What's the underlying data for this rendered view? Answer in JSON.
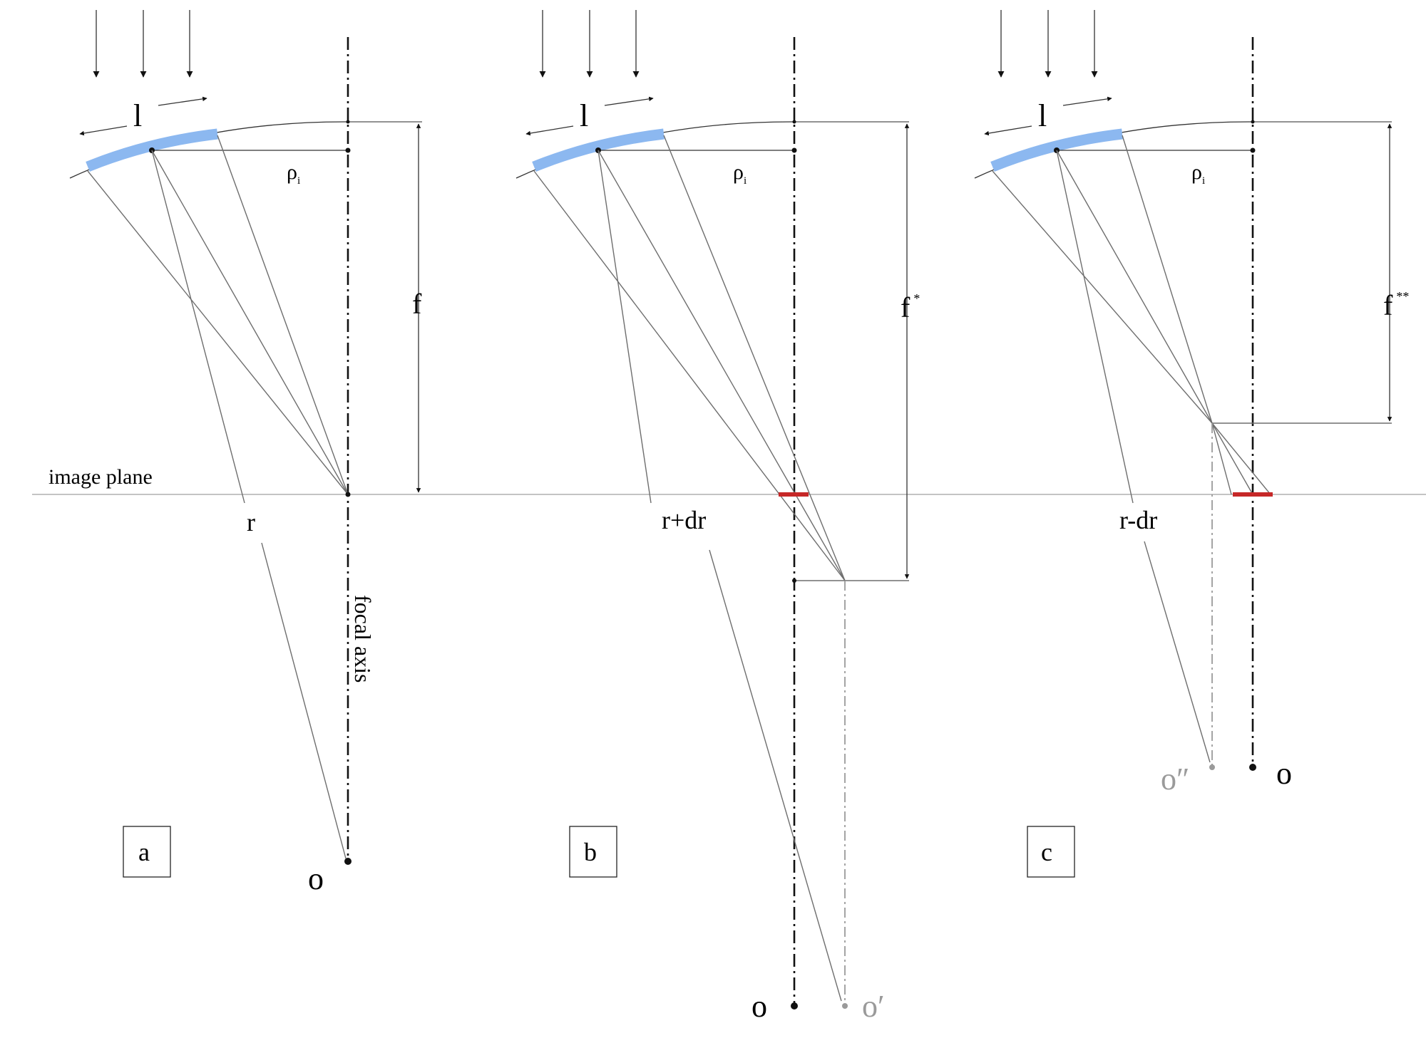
{
  "labels": {
    "image_plane": "image plane",
    "focal_axis": "focal axis",
    "arc_length": "l",
    "rho": "ρ",
    "rho_sub": "i",
    "panel_a": {
      "box": "a",
      "focal": "f",
      "radius": "r",
      "center": "o"
    },
    "panel_b": {
      "box": "b",
      "focal": "f",
      "focal_sup": "*",
      "radius": "r+dr",
      "center": "o",
      "shifted_center": "o′"
    },
    "panel_c": {
      "box": "c",
      "focal": "f",
      "focal_sup": "**",
      "radius": "r-dr",
      "center": "o",
      "shifted_center": "o″"
    }
  },
  "colors": {
    "mirror": "#8cb8f0",
    "blur_segment": "#c62828",
    "shifted": "#9a9a9a"
  }
}
